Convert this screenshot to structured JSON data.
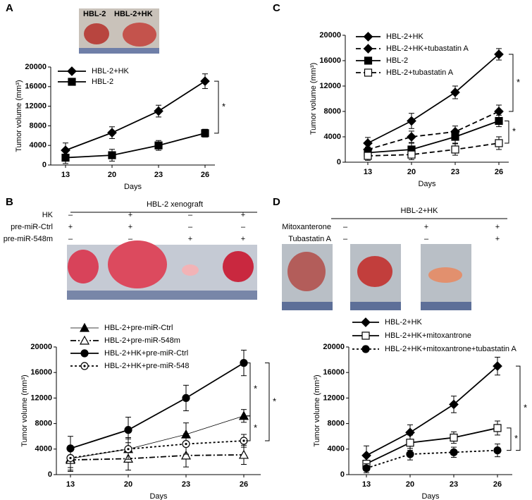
{
  "panels": {
    "a": "A",
    "b": "B",
    "c": "C",
    "d": "D"
  },
  "photo_a": {
    "labels": [
      "HBL-2",
      "HBL-2+HK"
    ]
  },
  "treatment_b": {
    "title": "HBL-2 xenograft",
    "rows": [
      {
        "label": "HK",
        "marks": [
          "–",
          "+",
          "–",
          "+"
        ]
      },
      {
        "label": "pre-miR-Ctrl",
        "marks": [
          "+",
          "+",
          "–",
          "–"
        ]
      },
      {
        "label": "pre-miR-548m",
        "marks": [
          "–",
          "–",
          "+",
          "+"
        ]
      }
    ]
  },
  "treatment_d": {
    "title": "HBL-2+HK",
    "rows": [
      {
        "label": "Mitoxanterone",
        "marks": [
          "–",
          "+",
          "+"
        ]
      },
      {
        "label": "Tubastatin A",
        "marks": [
          "–",
          "–",
          "+"
        ]
      }
    ]
  },
  "chart_data": [
    {
      "type": "line",
      "xlabel": "Days",
      "ylabel": "Tumor volume (mm³)",
      "categories": [
        "13",
        "20",
        "23",
        "26"
      ],
      "ylim": [
        0,
        20000
      ],
      "yticks": [
        0,
        4000,
        8000,
        12000,
        16000,
        20000
      ],
      "series": [
        {
          "name": "HBL-2+HK",
          "color": "#000000",
          "marker": "diamond-filled",
          "line_style": "solid",
          "values": [
            3000,
            6600,
            11000,
            17100
          ],
          "errors": [
            1500,
            1200,
            1200,
            1500
          ]
        },
        {
          "name": "HBL-2",
          "color": "#000000",
          "marker": "square-filled",
          "line_style": "solid",
          "values": [
            1500,
            2000,
            4000,
            6500
          ],
          "errors": [
            1200,
            1200,
            1000,
            800
          ]
        }
      ],
      "annotations": [
        "*"
      ]
    },
    {
      "type": "line",
      "xlabel": "Days",
      "ylabel": "Tumor volume (mm³)",
      "categories": [
        "13",
        "20",
        "23",
        "26"
      ],
      "ylim": [
        0,
        20000
      ],
      "yticks": [
        0,
        4000,
        8000,
        12000,
        16000,
        20000
      ],
      "series": [
        {
          "name": "HBL-2+HK",
          "color": "#000000",
          "marker": "diamond-filled",
          "line_style": "solid",
          "values": [
            3000,
            6500,
            11000,
            17000
          ],
          "errors": [
            900,
            1200,
            1000,
            900
          ]
        },
        {
          "name": "HBL-2+HK+tubastatin A",
          "color": "#000000",
          "marker": "diamond-filled",
          "line_style": "dashed",
          "values": [
            2000,
            4000,
            4800,
            8000
          ],
          "errors": [
            900,
            900,
            900,
            1000
          ]
        },
        {
          "name": "HBL-2",
          "color": "#000000",
          "marker": "square-filled",
          "line_style": "solid",
          "values": [
            1500,
            2000,
            4000,
            6500
          ],
          "errors": [
            900,
            1000,
            1000,
            900
          ]
        },
        {
          "name": "HBL-2+tubastatin A",
          "color": "#000000",
          "marker": "square-open",
          "line_style": "dashed",
          "values": [
            1000,
            1200,
            2000,
            3000
          ],
          "errors": [
            700,
            800,
            900,
            1000
          ]
        }
      ],
      "annotations": [
        "*",
        "*"
      ]
    },
    {
      "type": "line",
      "xlabel": "Days",
      "ylabel": "Tumor volume (mm³)",
      "categories": [
        "13",
        "20",
        "23",
        "26"
      ],
      "ylim": [
        0,
        20000
      ],
      "yticks": [
        0,
        4000,
        8000,
        12000,
        16000,
        20000
      ],
      "series": [
        {
          "name": "HBL-2+pre-miR-Ctrl",
          "color": "#000000",
          "marker": "triangle-filled",
          "line_style": "thin",
          "values": [
            2500,
            4000,
            6300,
            9200
          ],
          "errors": [
            1800,
            1800,
            1800,
            1000
          ]
        },
        {
          "name": "HBL-2+pre-miR-548m",
          "color": "#000000",
          "marker": "triangle-open",
          "line_style": "dashdot",
          "values": [
            2300,
            2500,
            3000,
            3100
          ],
          "errors": [
            1800,
            1800,
            1800,
            1500
          ]
        },
        {
          "name": "HBL-2+HK+pre-miR-Ctrl",
          "color": "#000000",
          "marker": "circle-filled",
          "line_style": "solid",
          "values": [
            4100,
            7000,
            12000,
            17500
          ],
          "errors": [
            1900,
            2000,
            2000,
            2000
          ]
        },
        {
          "name": "HBL-2+HK+pre-miR-548",
          "color": "#000000",
          "marker": "circle-dot",
          "line_style": "dotted",
          "values": [
            2600,
            4000,
            4800,
            5300
          ],
          "errors": [
            1500,
            1600,
            1600,
            1000
          ]
        }
      ],
      "annotations": [
        "*",
        "*",
        "*"
      ]
    },
    {
      "type": "line",
      "xlabel": "Days",
      "ylabel": "Tumor volume (mm³)",
      "categories": [
        "13",
        "20",
        "23",
        "26"
      ],
      "ylim": [
        0,
        20000
      ],
      "yticks": [
        0,
        4000,
        8000,
        12000,
        16000,
        20000
      ],
      "series": [
        {
          "name": "HBL-2+HK",
          "color": "#000000",
          "marker": "diamond-filled",
          "line_style": "solid",
          "values": [
            3000,
            6600,
            11000,
            17000
          ],
          "errors": [
            1500,
            1200,
            1300,
            1400
          ]
        },
        {
          "name": "HBL-2+HK+mitoxantrone",
          "color": "#000000",
          "marker": "square-open",
          "line_style": "solid",
          "values": [
            1700,
            5000,
            5800,
            7300
          ],
          "errors": [
            1000,
            1200,
            900,
            1100
          ]
        },
        {
          "name": "HBL-2+HK+mitoxantrone+tubastatin A",
          "color": "#000000",
          "marker": "circle-filled",
          "line_style": "dotted",
          "values": [
            1000,
            3200,
            3500,
            3800
          ],
          "errors": [
            700,
            900,
            800,
            1000
          ]
        }
      ],
      "annotations": [
        "*",
        "*"
      ]
    }
  ]
}
